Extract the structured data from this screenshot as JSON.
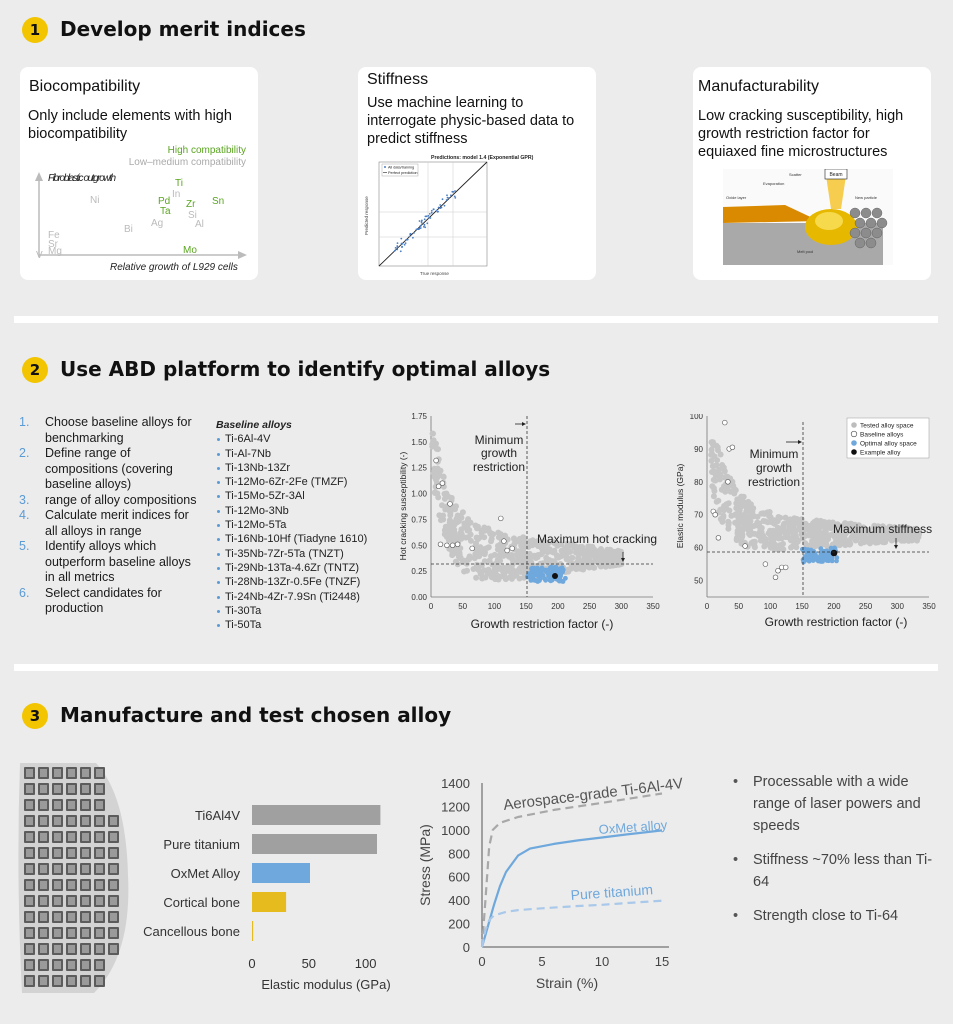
{
  "steps": [
    {
      "num": "1",
      "title": "Develop merit indices"
    },
    {
      "num": "2",
      "title": "Use ABD platform to identify optimal alloys"
    },
    {
      "num": "3",
      "title": "Manufacture and test chosen alloy"
    }
  ],
  "cards": {
    "biocompat": {
      "title": "Biocompatibility",
      "text": "Only include elements with high biocompatibility",
      "legend_high": "High compatibility",
      "legend_low": "Low–medium compatibility",
      "y_label": "Fibroblastic outgrowth",
      "x_label": "Relative growth of L929 cells",
      "elements_high": [
        "Ti",
        "Pd",
        "Zr",
        "Sn",
        "Ta",
        "Mo"
      ],
      "elements_low": [
        "In",
        "Ni",
        "Si",
        "Al",
        "Ag",
        "Bi",
        "Fe",
        "Sr",
        "Mg",
        "V"
      ]
    },
    "stiffness": {
      "title": "Stiffness",
      "text": "Use machine learning to interrogate physic-based data to predict stiffness",
      "plot_title": "Predictions: model 1.4 (Exponential GPR)",
      "legend_a": "All data/training",
      "legend_b": "Perfect prediction",
      "y_label": "Predicted response",
      "x_label": "True response"
    },
    "manufact": {
      "title": "Manufacturability",
      "text": "Low cracking susceptibility, high growth restriction factor for equiaxed fine microstructures",
      "beam": "Beam",
      "labels": [
        "Oxide layer",
        "Evaporation",
        "Scatter",
        "New particle",
        "Melt pool"
      ]
    }
  },
  "procedure": [
    {
      "num": "1.",
      "text": "Choose baseline alloys for benchmarking"
    },
    {
      "num": "2.",
      "text": "Define range of compositions (covering baseline alloys)"
    },
    {
      "num": "3.",
      "text": "range of alloy compositions"
    },
    {
      "num": "4.",
      "text": "Calculate merit indices for all alloys in range"
    },
    {
      "num": "5.",
      "text": "Identify alloys which outperform baseline alloys in all metrics"
    },
    {
      "num": "6.",
      "text": "Select candidates for production"
    }
  ],
  "baseline_alloys": {
    "header": "Baseline alloys",
    "items": [
      "Ti-6Al-4V",
      "Ti-Al-7Nb",
      "Ti-13Nb-13Zr",
      "Ti-12Mo-6Zr-2Fe (TMZF)",
      "Ti-15Mo-5Zr-3Al",
      "Ti-12Mo-3Nb",
      "Ti-12Mo-5Ta",
      "Ti-16Nb-10Hf (Tiadyne 1610)",
      "Ti-35Nb-7Zr-5Ta (TNZT)",
      "Ti-29Nb-13Ta-4.6Zr (TNTZ)",
      "Ti-28Nb-13Zr-0.5Fe (TNZF)",
      "Ti-24Nb-4Zr-7.9Sn (Ti2448)",
      "Ti-30Ta",
      "Ti-50Ta"
    ]
  },
  "scatter_hot": {
    "y_label": "Hot cracking susceptibility (-)",
    "x_label": "Growth restriction factor (-)",
    "x_ticks": [
      "0",
      "50",
      "100",
      "150",
      "200",
      "250",
      "300",
      "350"
    ],
    "y_ticks": [
      "0.00",
      "0.25",
      "0.50",
      "0.75",
      "1.00",
      "1.25",
      "1.50",
      "1.75"
    ],
    "annot_min": "Minimum growth restriction",
    "annot_max": "Maximum hot cracking"
  },
  "scatter_mod": {
    "y_label": "Elastic modulus (GPa)",
    "x_label": "Growth restriction factor (-)",
    "x_ticks": [
      "0",
      "50",
      "100",
      "150",
      "200",
      "250",
      "300",
      "350"
    ],
    "y_ticks": [
      "50",
      "60",
      "70",
      "80",
      "90",
      "100"
    ],
    "annot_min": "Minimum growth restriction",
    "annot_max": "Maximum stiffness",
    "legend": [
      "Tested alloy space",
      "Baseline alloys",
      "Optimal alloy space",
      "Example alloy"
    ]
  },
  "bar_chart": {
    "categories": [
      "Ti6Al4V",
      "Pure titanium",
      "OxMet Alloy",
      "Cortical bone",
      "Cancellous bone"
    ],
    "values": [
      113,
      110,
      51,
      30,
      1
    ],
    "colors": [
      "#a0a0a0",
      "#a0a0a0",
      "#6fa8dc",
      "#e5bb1e",
      "#e5bb1e"
    ],
    "x_ticks": [
      "0",
      "50",
      "100"
    ],
    "x_label": "Elastic modulus (GPa)"
  },
  "chart_data": {
    "type": "line",
    "xlabel": "Strain (%)",
    "ylabel": "Stress (MPa)",
    "xlim": [
      0,
      15
    ],
    "ylim": [
      0,
      1400
    ],
    "x_ticks": [
      "0",
      "5",
      "10",
      "15"
    ],
    "y_ticks": [
      "0",
      "200",
      "400",
      "600",
      "800",
      "1000",
      "1200",
      "1400"
    ],
    "series": [
      {
        "name": "Aerospace-grade Ti-6Al-4V",
        "style": "dashed",
        "color": "#a8a8a8",
        "x": [
          0,
          0.3,
          0.6,
          0.9,
          1.5,
          3,
          6,
          10,
          15
        ],
        "y": [
          0,
          420,
          860,
          1000,
          1060,
          1110,
          1170,
          1230,
          1310
        ]
      },
      {
        "name": "OxMet alloy",
        "style": "solid",
        "color": "#6fa8dc",
        "x": [
          0,
          0.5,
          1,
          1.5,
          2,
          3,
          4,
          6,
          8,
          10,
          12,
          15
        ],
        "y": [
          0,
          180,
          360,
          520,
          640,
          780,
          840,
          880,
          910,
          935,
          960,
          995
        ]
      },
      {
        "name": "Pure titanium",
        "style": "dashed",
        "color": "#a9c8ea",
        "x": [
          0,
          0.3,
          0.6,
          1,
          2,
          3,
          5,
          8,
          10,
          12,
          15
        ],
        "y": [
          0,
          150,
          230,
          270,
          300,
          315,
          330,
          350,
          360,
          375,
          395
        ]
      }
    ]
  },
  "conclusions": [
    "Processable with a wide range of laser powers and speeds",
    "Stiffness ~70% less than Ti-64",
    "Strength close to Ti-64"
  ]
}
